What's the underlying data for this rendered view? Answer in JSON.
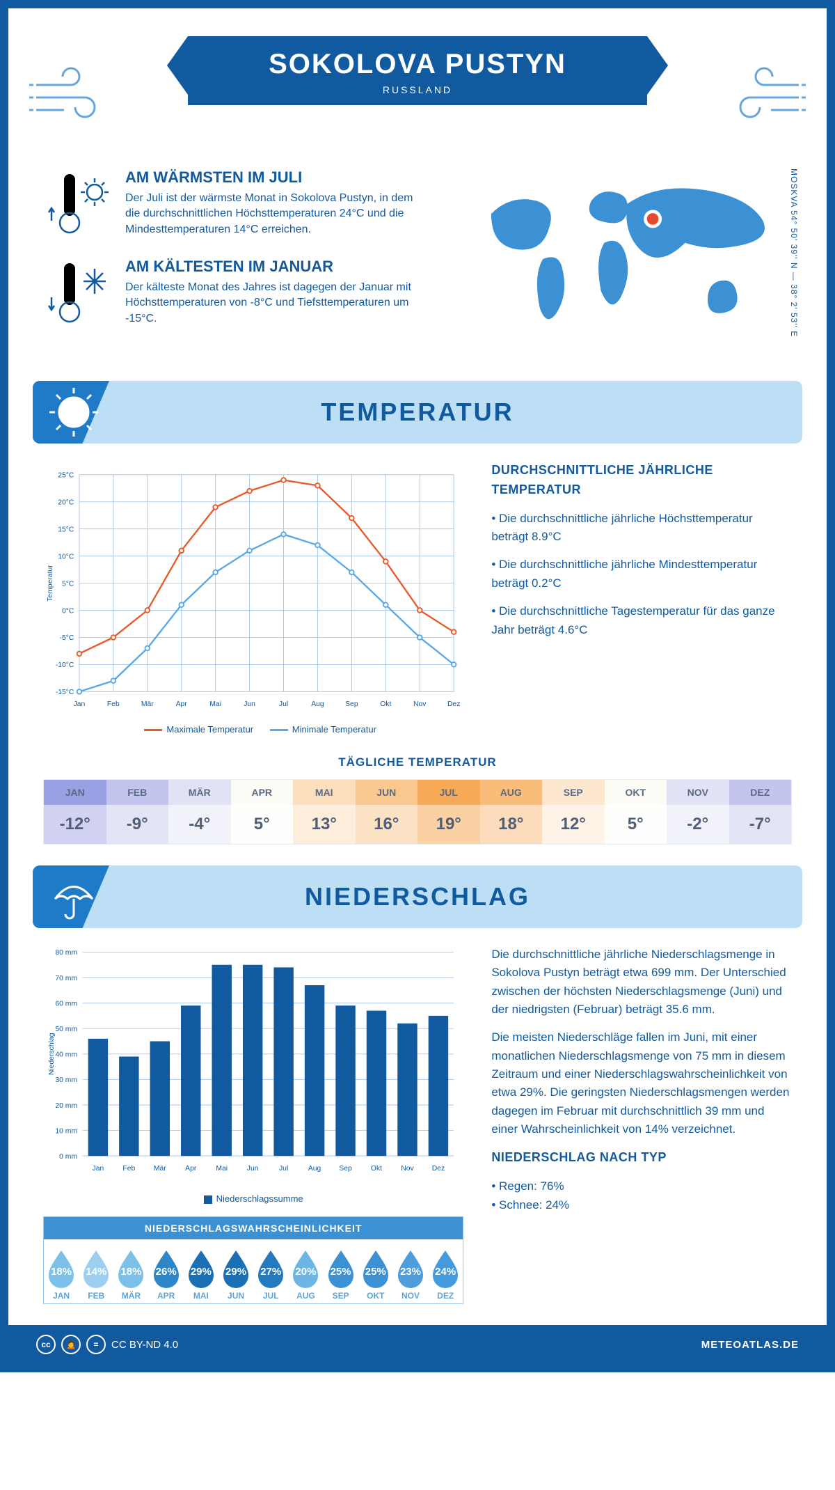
{
  "header": {
    "title": "SOKOLOVA PUSTYN",
    "country": "RUSSLAND"
  },
  "coords": "MOSKVA    54° 50' 39'' N — 38° 2' 53'' E",
  "warm": {
    "title": "AM WÄRMSTEN IM JULI",
    "text": "Der Juli ist der wärmste Monat in Sokolova Pustyn, in dem die durchschnittlichen Höchsttemperaturen 24°C und die Mindesttemperaturen 14°C erreichen."
  },
  "cold": {
    "title": "AM KÄLTESTEN IM JANUAR",
    "text": "Der kälteste Monat des Jahres ist dagegen der Januar mit Höchsttemperaturen von -8°C und Tiefsttemperaturen um -15°C."
  },
  "sections": {
    "temperature": "TEMPERATUR",
    "precipitation": "NIEDERSCHLAG"
  },
  "tempChart": {
    "type": "line",
    "months": [
      "Jan",
      "Feb",
      "Mär",
      "Apr",
      "Mai",
      "Jun",
      "Jul",
      "Aug",
      "Sep",
      "Okt",
      "Nov",
      "Dez"
    ],
    "max": {
      "label": "Maximale Temperatur",
      "color": "#e85a2a",
      "values": [
        -8,
        -5,
        0,
        11,
        19,
        22,
        24,
        23,
        17,
        9,
        0,
        -4
      ]
    },
    "min": {
      "label": "Minimale Temperatur",
      "color": "#5aa9e6",
      "values": [
        -15,
        -13,
        -7,
        1,
        7,
        11,
        14,
        12,
        7,
        1,
        -5,
        -10
      ]
    },
    "ylim": [
      -15,
      25
    ],
    "ytick_step": 5,
    "ylabel": "Temperatur",
    "grid_color": "#a8c7e8",
    "label_fontsize": 11
  },
  "tempStats": {
    "heading": "DURCHSCHNITTLICHE JÄHRLICHE TEMPERATUR",
    "b1": "• Die durchschnittliche jährliche Höchsttemperatur beträgt 8.9°C",
    "b2": "• Die durchschnittliche jährliche Mindesttemperatur beträgt 0.2°C",
    "b3": "• Die durchschnittliche Tagestemperatur für das ganze Jahr beträgt 4.6°C"
  },
  "daily": {
    "title": "TÄGLICHE TEMPERATUR",
    "months": [
      "JAN",
      "FEB",
      "MÄR",
      "APR",
      "MAI",
      "JUN",
      "JUL",
      "AUG",
      "SEP",
      "OKT",
      "NOV",
      "DEZ"
    ],
    "values": [
      "-12°",
      "-9°",
      "-4°",
      "5°",
      "13°",
      "16°",
      "19°",
      "18°",
      "12°",
      "5°",
      "-2°",
      "-7°"
    ],
    "header_colors": [
      "#9b9fe3",
      "#c3c5ee",
      "#e2e2f6",
      "#fdfbf6",
      "#fcddbc",
      "#fac78f",
      "#f7a955",
      "#f9bd79",
      "#fde7cf",
      "#fdfbf6",
      "#e2e2f6",
      "#c3c5ee"
    ],
    "value_colors": [
      "#d2d3f2",
      "#e4e4f7",
      "#f2f2fb",
      "#fefefc",
      "#fdeedb",
      "#fce2c4",
      "#fbd1a3",
      "#fcdcba",
      "#fef3e6",
      "#fefefc",
      "#f2f2fb",
      "#e4e4f7"
    ]
  },
  "precipChart": {
    "type": "bar",
    "months": [
      "Jan",
      "Feb",
      "Mär",
      "Apr",
      "Mai",
      "Jun",
      "Jul",
      "Aug",
      "Sep",
      "Okt",
      "Nov",
      "Dez"
    ],
    "values": [
      46,
      39,
      45,
      59,
      75,
      75,
      74,
      67,
      59,
      57,
      52,
      55
    ],
    "bar_color": "#125aa0",
    "ylim": [
      0,
      80
    ],
    "ytick_step": 10,
    "ylabel": "Niederschlag",
    "legend": "Niederschlagssumme",
    "grid_color": "#a8c7e8"
  },
  "precipText": {
    "p1": "Die durchschnittliche jährliche Niederschlagsmenge in Sokolova Pustyn beträgt etwa 699 mm. Der Unterschied zwischen der höchsten Niederschlagsmenge (Juni) und der niedrigsten (Februar) beträgt 35.6 mm.",
    "p2": "Die meisten Niederschläge fallen im Juni, mit einer monatlichen Niederschlagsmenge von 75 mm in diesem Zeitraum und einer Niederschlagswahrscheinlichkeit von etwa 29%. Die geringsten Niederschlagsmengen werden dagegen im Februar mit durchschnittlich 39 mm und einer Wahrscheinlichkeit von 14% verzeichnet.",
    "typeHeading": "NIEDERSCHLAG NACH TYP",
    "rain": "• Regen: 76%",
    "snow": "• Schnee: 24%"
  },
  "prob": {
    "title": "NIEDERSCHLAGSWAHRSCHEINLICHKEIT",
    "months": [
      "JAN",
      "FEB",
      "MÄR",
      "APR",
      "MAI",
      "JUN",
      "JUL",
      "AUG",
      "SEP",
      "OKT",
      "NOV",
      "DEZ"
    ],
    "values": [
      "18%",
      "14%",
      "18%",
      "26%",
      "29%",
      "29%",
      "27%",
      "20%",
      "25%",
      "25%",
      "23%",
      "24%"
    ],
    "colors": [
      "#7cc0ea",
      "#9ccfef",
      "#7cc0ea",
      "#2e86c8",
      "#1a6fb5",
      "#1a6fb5",
      "#2579bd",
      "#6bb6e5",
      "#3b91d4",
      "#3b91d4",
      "#4e9cd9",
      "#459add"
    ]
  },
  "footer": {
    "license": "CC BY-ND 4.0",
    "site": "METEOATLAS.DE"
  }
}
